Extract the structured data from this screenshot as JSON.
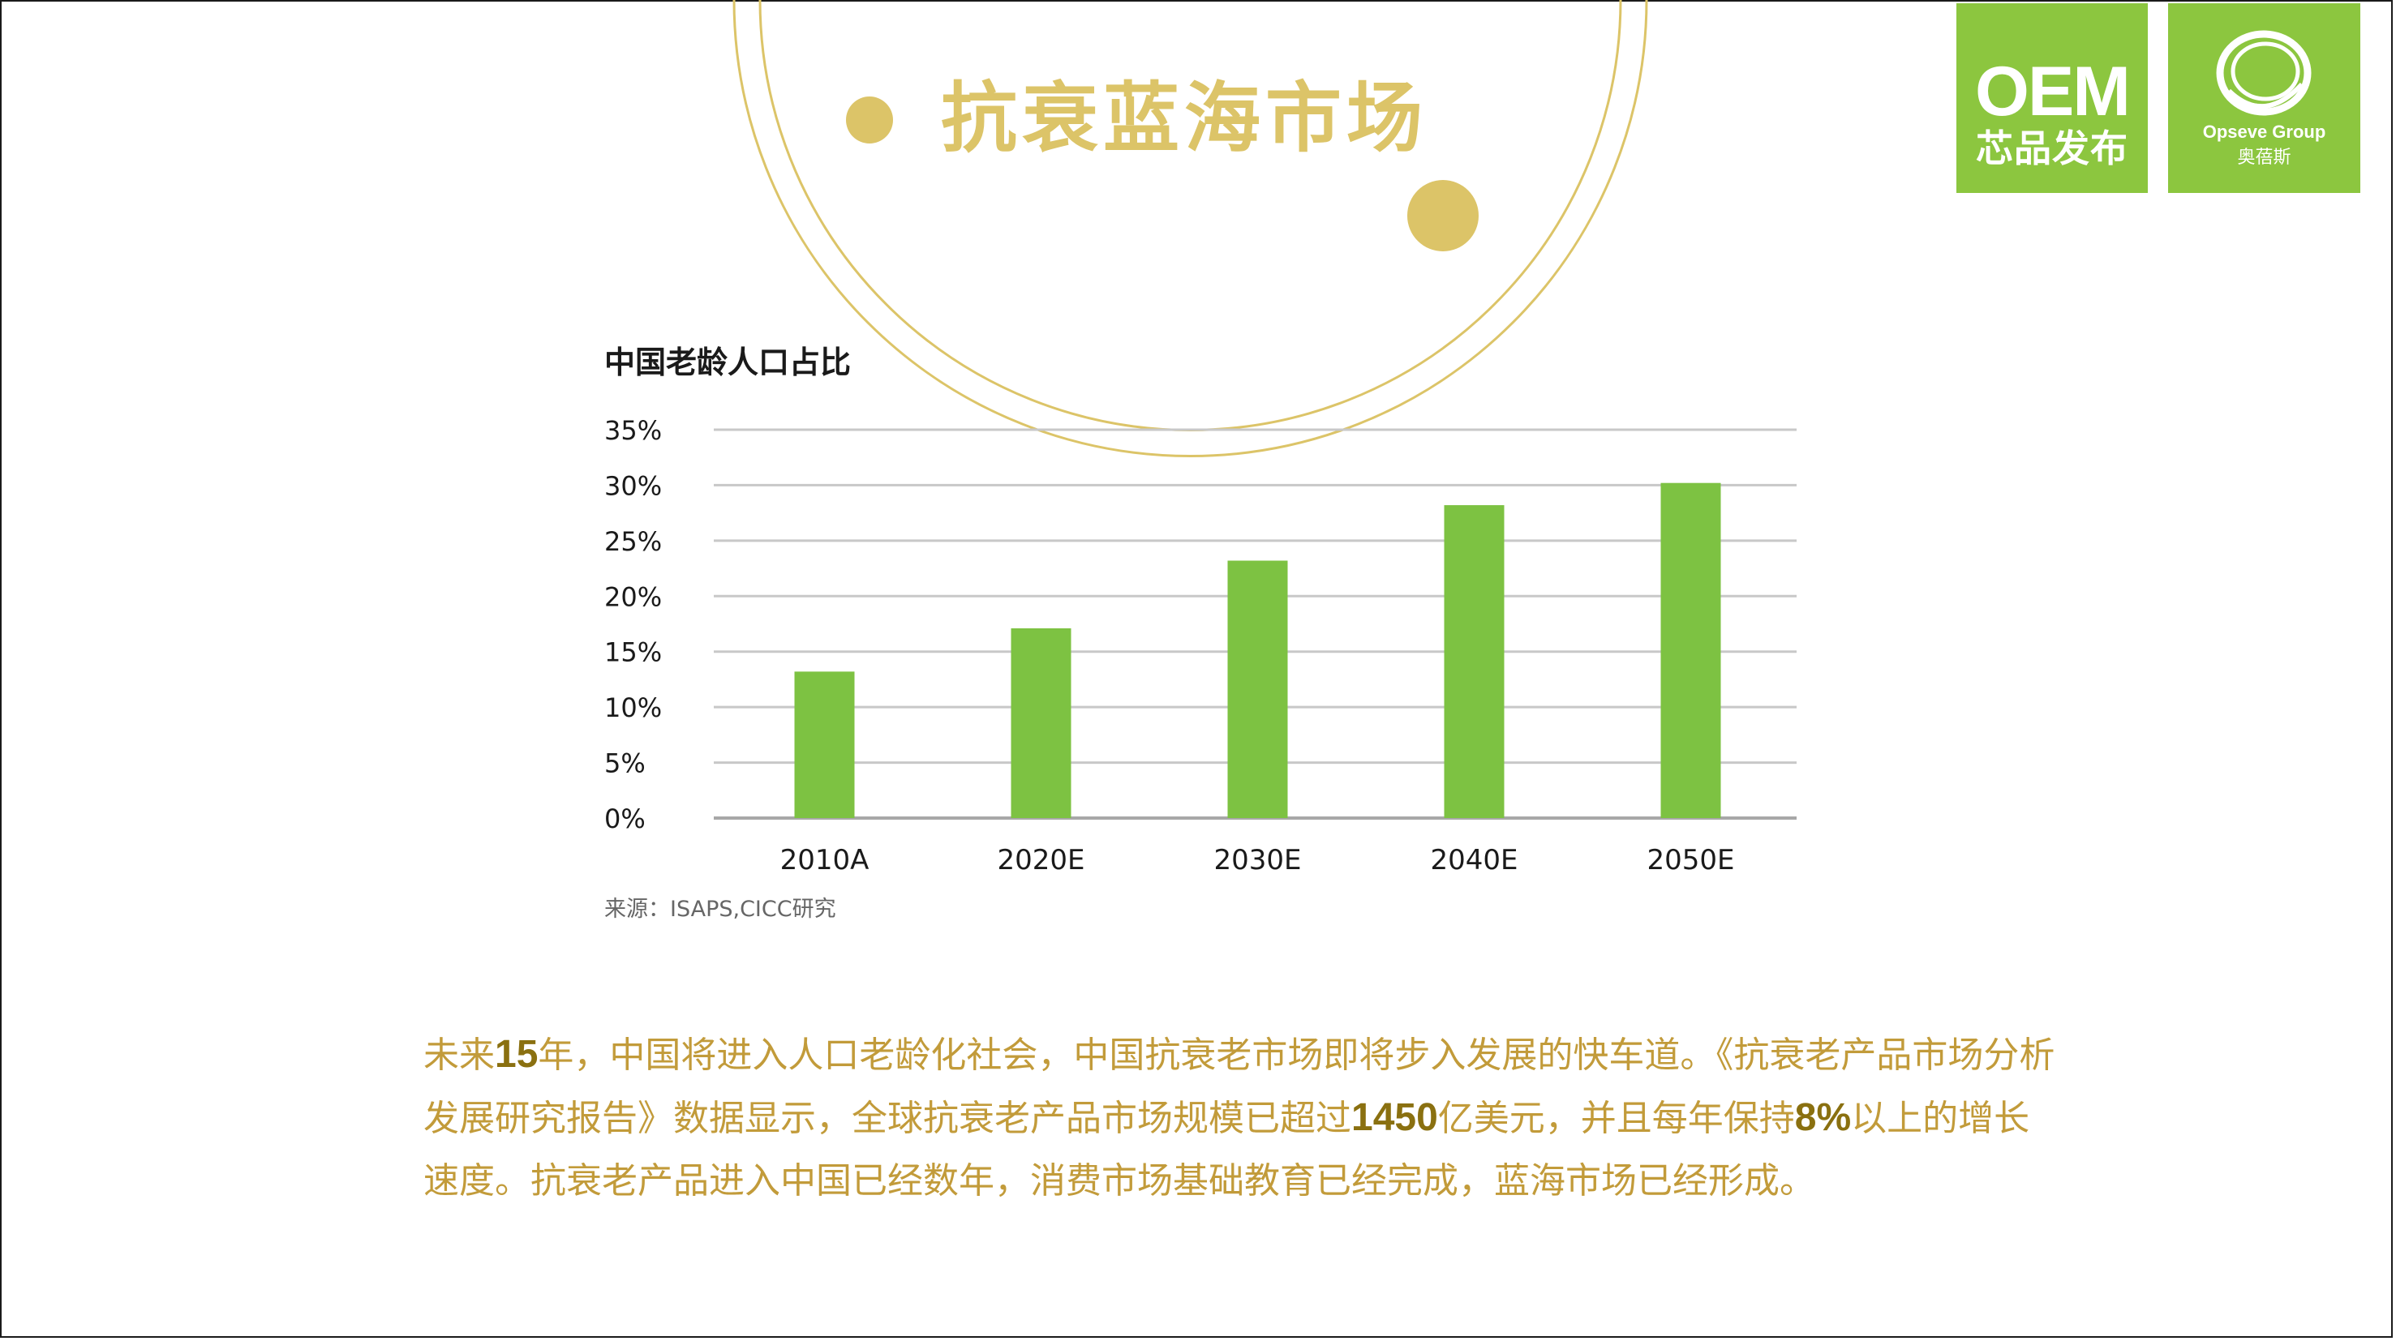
{
  "slide": {
    "title": "抗衰蓝海市场"
  },
  "logos": {
    "oem_main": "OEM",
    "oem_sub": "芯品发布",
    "opseve_name": "Opseve Group",
    "opseve_cn": "奥蓓斯",
    "brand_green": "#8cc63f",
    "icons": [
      "ring-swirl-icon"
    ]
  },
  "chart_data": {
    "type": "bar",
    "title": "中国老龄人口占比",
    "categories": [
      "2010A",
      "2020E",
      "2030E",
      "2040E",
      "2050E"
    ],
    "values": [
      13.2,
      17.1,
      23.2,
      28.2,
      30.2
    ],
    "ylim": [
      0,
      35
    ],
    "yticks": [
      "0%",
      "5%",
      "10%",
      "15%",
      "20%",
      "25%",
      "30%",
      "35%"
    ],
    "grid": true,
    "legend": "none",
    "source": "来源：ISAPS,CICC研究",
    "bar_color": "#7dc242",
    "grid_color": "#c8c8c8"
  },
  "paragraph": {
    "p1": "未来",
    "h1": "15",
    "p2": "年，中国将进入人口老龄化社会，中国抗衰老市场即将步入发展的快车道。《抗衰老产品市场分析发展研究报告》数据显示，全球抗衰老产品市场规模已超过",
    "h2": "1450",
    "p3": "亿美元，并且每年保持",
    "h3": "8%",
    "p4": "以上的增长速度。抗衰老产品进入中国已经数年，消费市场基础教育已经完成，蓝海市场已经形成。"
  },
  "colors": {
    "gold_text": "#c29b3a",
    "title_gold": "#dcc468",
    "deco_gold": "#dcc468"
  }
}
